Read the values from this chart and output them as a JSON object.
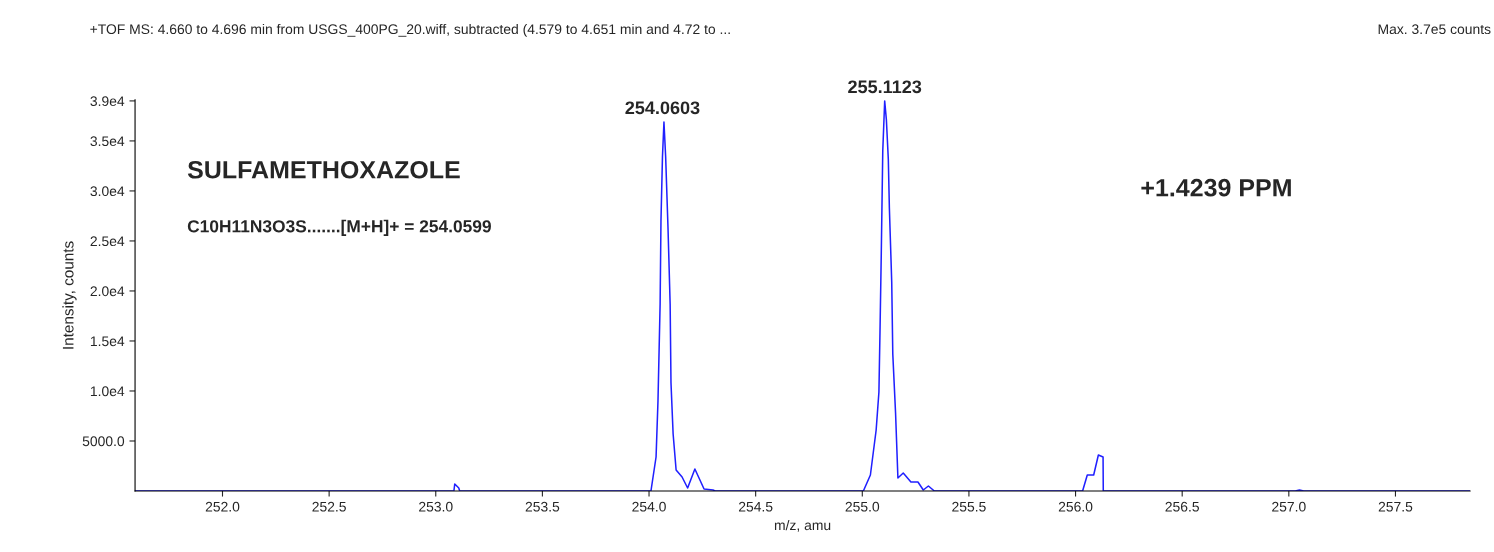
{
  "chart_data": {
    "type": "line",
    "title": "+TOF MS: 4.660 to 4.696 min from USGS_400PG_20.wiff, subtracted (4.579 to 4.651 min and 4.72 to ...",
    "subtitle": "Max. 3.7e5 counts",
    "xlabel": "m/z, amu",
    "ylabel": "Intensity, counts",
    "series": [
      {
        "color": "#2020ff",
        "x": [
          251.59,
          253.085,
          253.089,
          253.108,
          253.112,
          254.009,
          254.033,
          254.042,
          254.052,
          254.056,
          254.063,
          254.07,
          254.078,
          254.089,
          254.099,
          254.103,
          254.113,
          254.127,
          254.155,
          254.181,
          254.215,
          254.258,
          254.3,
          254.31,
          255.005,
          255.038,
          255.065,
          255.078,
          255.083,
          255.089,
          255.096,
          255.105,
          255.113,
          255.122,
          255.127,
          255.138,
          255.143,
          255.156,
          255.167,
          255.192,
          255.228,
          255.261,
          255.286,
          255.31,
          255.338,
          256.033,
          256.055,
          256.085,
          256.107,
          256.129,
          256.13,
          257.03,
          257.05,
          257.07,
          257.85
        ],
        "values": [
          0,
          0,
          700,
          300,
          0,
          0,
          3400,
          9000,
          18700,
          27000,
          33400,
          36900,
          33400,
          26300,
          18700,
          10800,
          5700,
          2100,
          1400,
          300,
          2200,
          200,
          100,
          0,
          0,
          1600,
          6100,
          9900,
          15900,
          23700,
          34000,
          39000,
          37100,
          33200,
          28300,
          20900,
          13700,
          7800,
          1300,
          1800,
          900,
          900,
          100,
          500,
          0,
          0,
          1600,
          1600,
          3600,
          3400,
          0,
          0,
          100,
          0,
          0
        ]
      }
    ],
    "xlim": [
      251.59,
      257.85
    ],
    "ylim": [
      0,
      39100
    ],
    "xticks": [
      {
        "value": 252,
        "label": "252.0"
      },
      252.5,
      {
        "value": 253,
        "label": "253.0"
      },
      253.5,
      {
        "value": 254,
        "label": "254.0"
      },
      254.5,
      {
        "value": 255,
        "label": "255.0"
      },
      255.5,
      {
        "value": 256,
        "label": "256.0"
      },
      256.5,
      {
        "value": 257,
        "label": "257.0"
      },
      257.5
    ],
    "yticks": [
      {
        "value": 5000,
        "label": "5000.0"
      },
      {
        "value": 10000,
        "label": "1.0e4"
      },
      {
        "value": 15000,
        "label": "1.5e4"
      },
      {
        "value": 20000,
        "label": "2.0e4"
      },
      {
        "value": 25000,
        "label": "2.5e4"
      },
      {
        "value": 30000,
        "label": "3.0e4"
      },
      {
        "value": 35000,
        "label": "3.5e4"
      },
      {
        "value": 39000,
        "label": "3.9e4"
      }
    ],
    "annotations": [
      "SULFAMETHOXAZOLE",
      "C10H11N3O3S.......[M+H]+ = 254.0599",
      "+1.4239 PPM",
      {
        "text": "254.0603",
        "x": 254.063,
        "y": 36900
      },
      {
        "text": "255.1123",
        "x": 255.105,
        "y": 39000
      }
    ],
    "grid": false,
    "marker": "none",
    "line_style": "solid",
    "legend": false
  }
}
